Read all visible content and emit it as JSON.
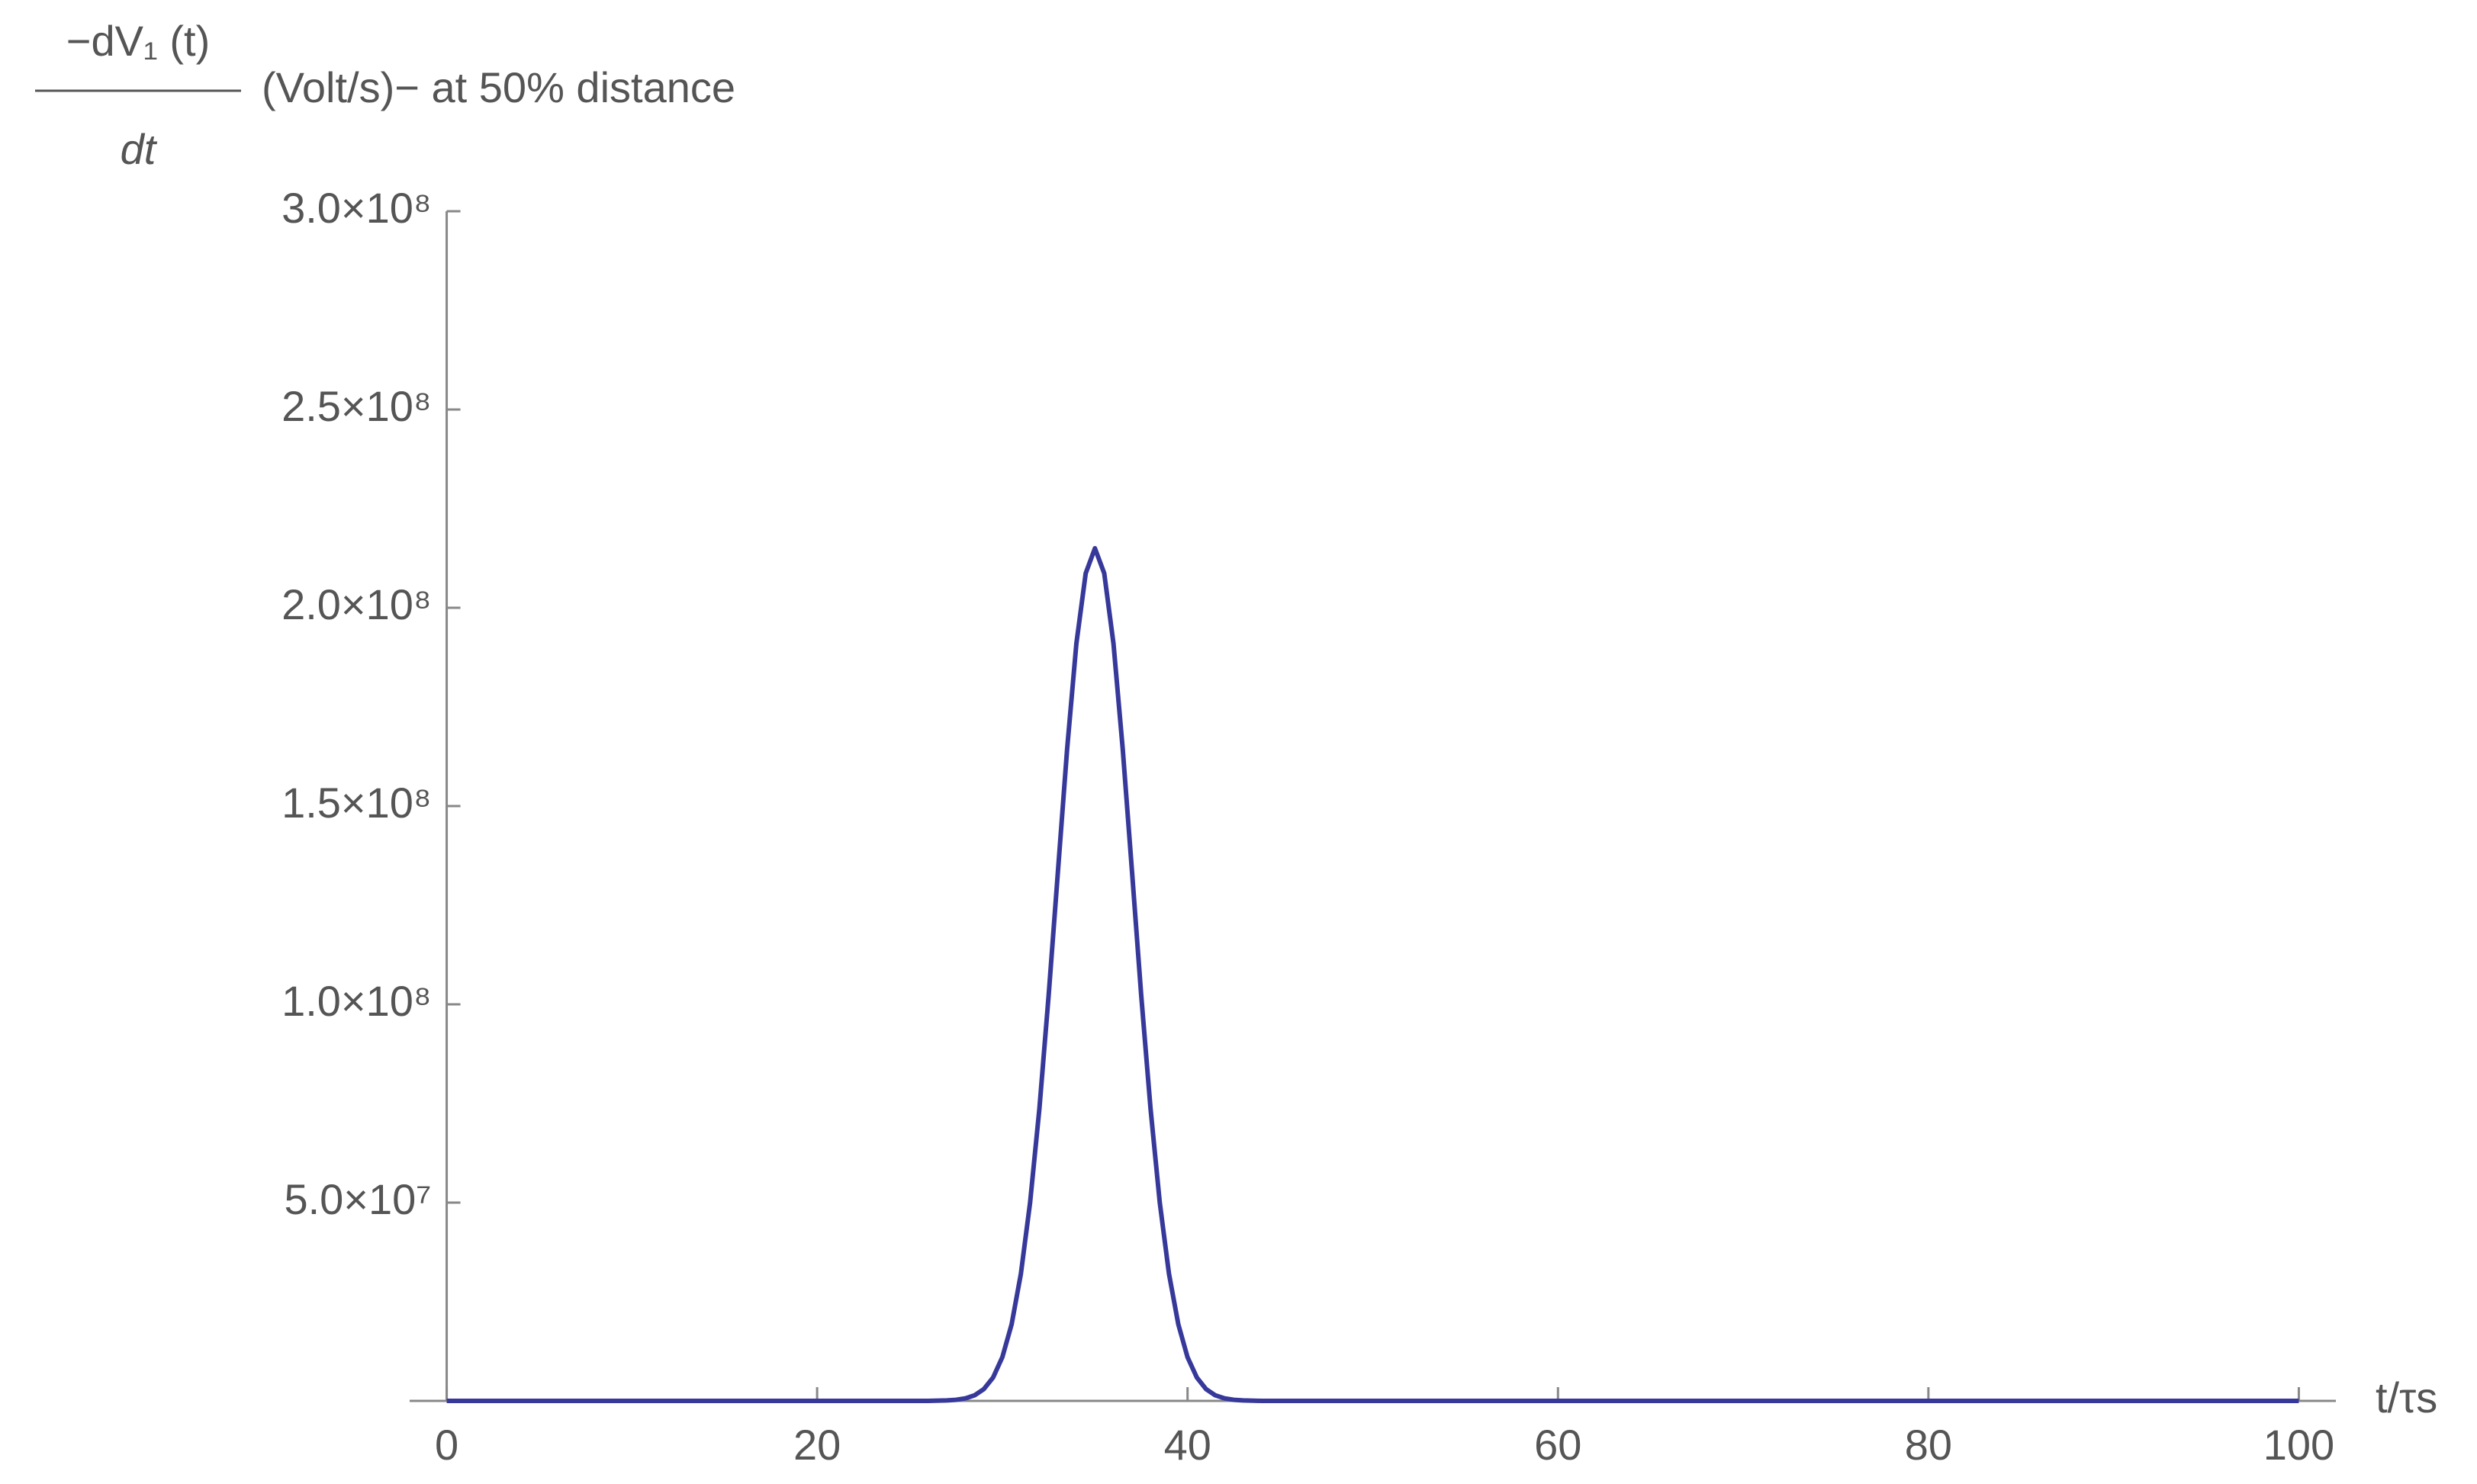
{
  "chart_data": {
    "type": "line",
    "y_label_numerator": "−dV₁ (t)",
    "y_label_denominator": "dt",
    "y_label_unit": "(Volt/s)− at 50% distance",
    "x_label": "t/τs",
    "x": [
      0,
      20,
      26,
      27,
      27.5,
      28,
      28.5,
      29,
      29.5,
      30,
      30.5,
      31,
      31.5,
      32,
      32.5,
      33,
      33.5,
      34,
      34.5,
      35,
      35.5,
      36,
      36.5,
      37,
      37.5,
      38,
      38.5,
      39,
      39.5,
      40,
      40.5,
      41,
      41.5,
      42,
      42.5,
      43,
      44,
      50,
      100
    ],
    "series": [
      {
        "color": "#37399a",
        "values": [
          0,
          0,
          0,
          110000,
          270000,
          630000,
          1410000,
          2970000,
          5880000,
          11000000,
          19300000,
          32000000,
          50000000,
          73700000,
          102200000,
          133500000,
          164500000,
          191000000,
          208700000,
          215000000,
          208700000,
          191000000,
          164500000,
          133500000,
          102200000,
          73700000,
          50000000,
          32000000,
          19300000,
          11000000,
          5880000,
          2970000,
          1410000,
          630000,
          270000,
          110000,
          0,
          0,
          0
        ]
      }
    ],
    "xlim": [
      -2,
      102
    ],
    "ylim": [
      0,
      300000000
    ],
    "xticks": [
      0,
      20,
      40,
      60,
      80,
      100
    ],
    "yticks": [
      {
        "value": 50000000,
        "label": "5.0×10⁷"
      },
      {
        "value": 100000000,
        "label": "1.0×10⁸"
      },
      {
        "value": 150000000,
        "label": "1.5×10⁸"
      },
      {
        "value": 200000000,
        "label": "2.0×10⁸"
      },
      {
        "value": 250000000,
        "label": "2.5×10⁸"
      },
      {
        "value": 300000000,
        "label": "3.0×10⁸"
      }
    ],
    "grid": false
  }
}
